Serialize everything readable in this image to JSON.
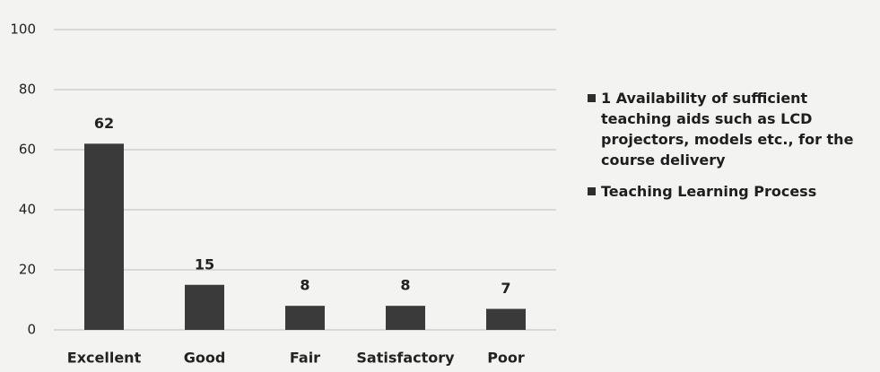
{
  "chart_data": {
    "type": "bar",
    "categories": [
      "Excellent",
      "Good",
      "Fair",
      "Satisfactory",
      "Poor"
    ],
    "values": [
      62,
      15,
      8,
      8,
      7
    ],
    "color": "#3a3a3a",
    "ylim": [
      0,
      100
    ],
    "yticks": [
      0,
      20,
      40,
      60,
      80,
      100
    ],
    "grid": true,
    "legend": [
      {
        "name": "1 Availability of sufficient teaching aids such as LCD projectors, models etc., for the course delivery",
        "color": "#2e2e2e"
      },
      {
        "name": "Teaching Learning Process",
        "color": "#2e2e2e"
      }
    ],
    "legend_position": "right"
  }
}
